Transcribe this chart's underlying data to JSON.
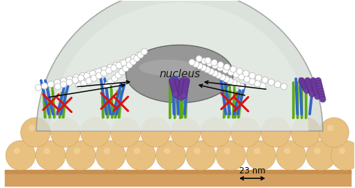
{
  "fig_width": 5.1,
  "fig_height": 2.7,
  "dpi": 100,
  "bg_color": "#ffffff",
  "nucleus_label": "nucleus",
  "bump_color": "#e8c080",
  "bump_edge_color": "#c8a060",
  "base_color": "#d4a060",
  "base_top_color": "#c89050",
  "green_color": "#5aaa18",
  "blue_color": "#3366cc",
  "purple_color": "#7040a0",
  "purple_edge": "#502080",
  "white_bead_color": "#ffffff",
  "white_bead_edge": "#b0b0b0",
  "red_x_color": "#dd1111",
  "cell_outer_color": "#d0d8d0",
  "cell_inner_color": "#e8eee8",
  "cell_edge_color": "#909090",
  "nucleus_color": "#909090",
  "nucleus_edge": "#606060",
  "nucleus_hi_color": "#b8b8b8",
  "arrow_color": "#000000",
  "label_23nm": "23 nm",
  "label_fontsize": 8.5
}
